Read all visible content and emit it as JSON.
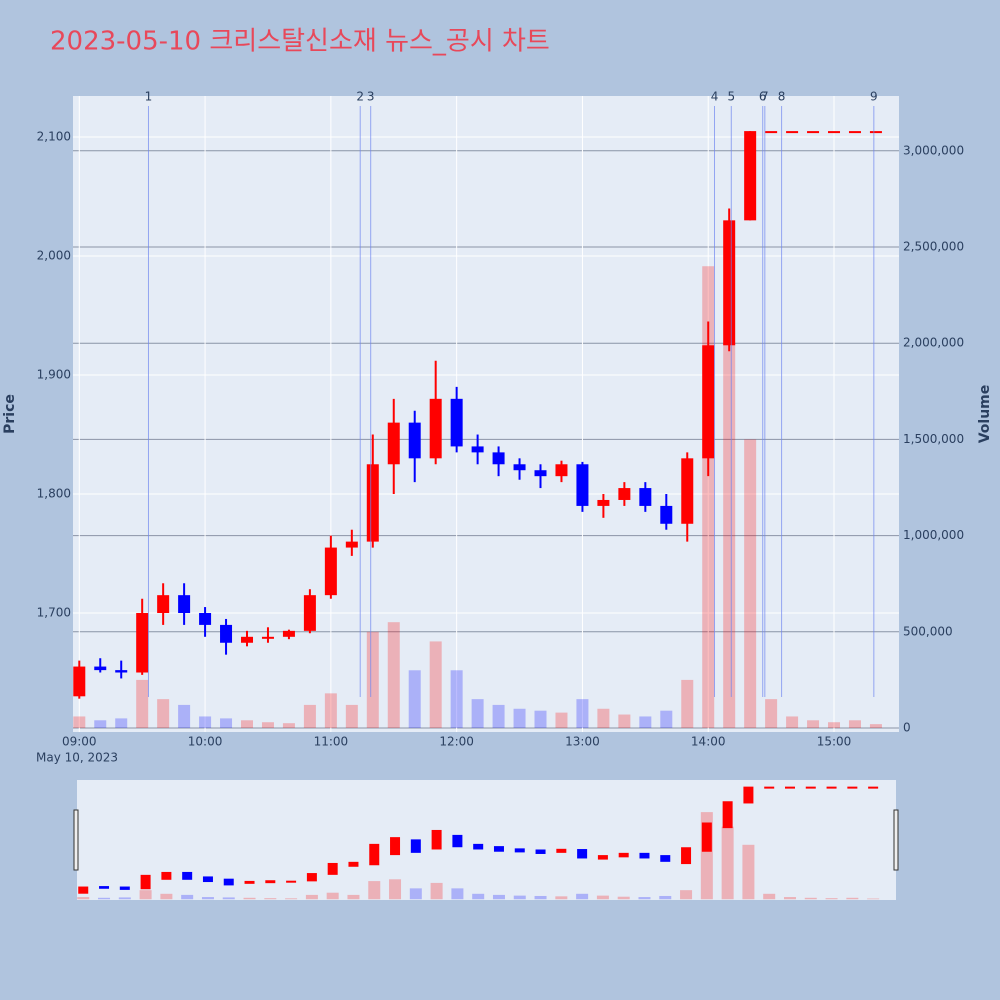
{
  "chart_data": {
    "type": "candlestick",
    "title": "2023-05-10 크리스탈신소재 뉴스_공시 차트",
    "y_label": "Price",
    "y2_label": "Volume",
    "x_date_label": "May 10, 2023",
    "up_color": "#ff0000",
    "down_color": "#0000ff",
    "grid": true,
    "xlim": [
      "2023-05-10 08:57",
      "2023-05-10 15:31"
    ],
    "xticks": [
      {
        "value": "2023-05-10 09:00",
        "label": "09:00"
      },
      {
        "value": "2023-05-10 10:00",
        "label": "10:00"
      },
      {
        "value": "2023-05-10 11:00",
        "label": "11:00"
      },
      {
        "value": "2023-05-10 12:00",
        "label": "12:00"
      },
      {
        "value": "2023-05-10 13:00",
        "label": "13:00"
      },
      {
        "value": "2023-05-10 14:00",
        "label": "14:00"
      },
      {
        "value": "2023-05-10 15:00",
        "label": "15:00"
      }
    ],
    "ylim": [
      1600,
      2134.5
    ],
    "yticks": [
      {
        "value": 1700,
        "label": "1,700"
      },
      {
        "value": 1800,
        "label": "1,800"
      },
      {
        "value": 1900,
        "label": "1,900"
      },
      {
        "value": 2000,
        "label": "2,000"
      },
      {
        "value": 2100,
        "label": "2,100"
      }
    ],
    "y2lim": [
      -20800,
      3284800
    ],
    "y2ticks": [
      0,
      {
        "value": 500000,
        "label": "500,000"
      },
      {
        "value": 1000000,
        "label": "1,000,000"
      },
      {
        "value": 1500000,
        "label": "1,500,000"
      },
      {
        "value": 2000000,
        "label": "2,000,000"
      },
      {
        "value": 2500000,
        "label": "2,500,000"
      },
      {
        "value": 3000000,
        "label": "3,000,000"
      }
    ],
    "x": [
      "2023-05-10 09:00",
      "2023-05-10 09:10",
      "2023-05-10 09:20",
      "2023-05-10 09:30",
      "2023-05-10 09:40",
      "2023-05-10 09:50",
      "2023-05-10 10:00",
      "2023-05-10 10:10",
      "2023-05-10 10:20",
      "2023-05-10 10:30",
      "2023-05-10 10:40",
      "2023-05-10 10:50",
      "2023-05-10 11:00",
      "2023-05-10 11:10",
      "2023-05-10 11:20",
      "2023-05-10 11:30",
      "2023-05-10 11:40",
      "2023-05-10 11:50",
      "2023-05-10 12:00",
      "2023-05-10 12:10",
      "2023-05-10 12:20",
      "2023-05-10 12:30",
      "2023-05-10 12:40",
      "2023-05-10 12:50",
      "2023-05-10 13:00",
      "2023-05-10 13:10",
      "2023-05-10 13:20",
      "2023-05-10 13:30",
      "2023-05-10 13:40",
      "2023-05-10 13:50",
      "2023-05-10 14:00",
      "2023-05-10 14:10",
      "2023-05-10 14:20",
      "2023-05-10 14:30",
      "2023-05-10 14:40",
      "2023-05-10 14:50",
      "2023-05-10 15:00",
      "2023-05-10 15:10",
      "2023-05-10 15:20"
    ],
    "open": [
      1630,
      1655,
      1652,
      1650,
      1700,
      1715,
      1700,
      1690,
      1675,
      1680,
      1680,
      1685,
      1715,
      1755,
      1760,
      1825,
      1860,
      1830,
      1880,
      1840,
      1835,
      1825,
      1820,
      1815,
      1825,
      1790,
      1795,
      1805,
      1790,
      1775,
      1830,
      1925,
      2030,
      2105,
      2105,
      2105,
      2105,
      2105,
      2105
    ],
    "high": [
      1660,
      1662,
      1660,
      1712,
      1725,
      1725,
      1705,
      1695,
      1685,
      1688,
      1686,
      1720,
      1765,
      1770,
      1850,
      1880,
      1870,
      1912,
      1890,
      1850,
      1840,
      1830,
      1825,
      1828,
      1827,
      1800,
      1810,
      1810,
      1800,
      1835,
      1945,
      2040,
      2105,
      2105,
      2105,
      2105,
      2105,
      2105,
      2105
    ],
    "low": [
      1628,
      1650,
      1645,
      1648,
      1690,
      1690,
      1680,
      1665,
      1672,
      1675,
      1678,
      1683,
      1712,
      1748,
      1755,
      1800,
      1810,
      1825,
      1835,
      1825,
      1815,
      1812,
      1805,
      1810,
      1785,
      1780,
      1790,
      1785,
      1770,
      1760,
      1815,
      1920,
      2030,
      2105,
      2105,
      2105,
      2105,
      2105,
      2105
    ],
    "close": [
      1655,
      1652,
      1650,
      1700,
      1715,
      1700,
      1690,
      1675,
      1680,
      1680,
      1685,
      1715,
      1755,
      1760,
      1825,
      1860,
      1830,
      1880,
      1840,
      1835,
      1825,
      1820,
      1815,
      1825,
      1790,
      1795,
      1805,
      1790,
      1775,
      1830,
      1925,
      2030,
      2105,
      2105,
      2105,
      2105,
      2105,
      2105,
      2105
    ],
    "volume": [
      60000,
      40000,
      50000,
      250000,
      150000,
      120000,
      60000,
      50000,
      40000,
      30000,
      25000,
      120000,
      180000,
      120000,
      500000,
      550000,
      300000,
      450000,
      300000,
      150000,
      120000,
      100000,
      90000,
      80000,
      150000,
      100000,
      70000,
      60000,
      90000,
      250000,
      2400000,
      2000000,
      1500000,
      150000,
      60000,
      40000,
      30000,
      40000,
      20000
    ],
    "events": [
      {
        "label": "1",
        "x": "2023-05-10 09:33"
      },
      {
        "label": "2",
        "x": "2023-05-10 11:14"
      },
      {
        "label": "3",
        "x": "2023-05-10 11:19"
      },
      {
        "label": "4",
        "x": "2023-05-10 14:03"
      },
      {
        "label": "5",
        "x": "2023-05-10 14:11"
      },
      {
        "label": "6",
        "x": "2023-05-10 14:26"
      },
      {
        "label": "7",
        "x": "2023-05-10 14:27"
      },
      {
        "label": "8",
        "x": "2023-05-10 14:35"
      },
      {
        "label": "9",
        "x": "2023-05-10 15:19"
      }
    ]
  }
}
